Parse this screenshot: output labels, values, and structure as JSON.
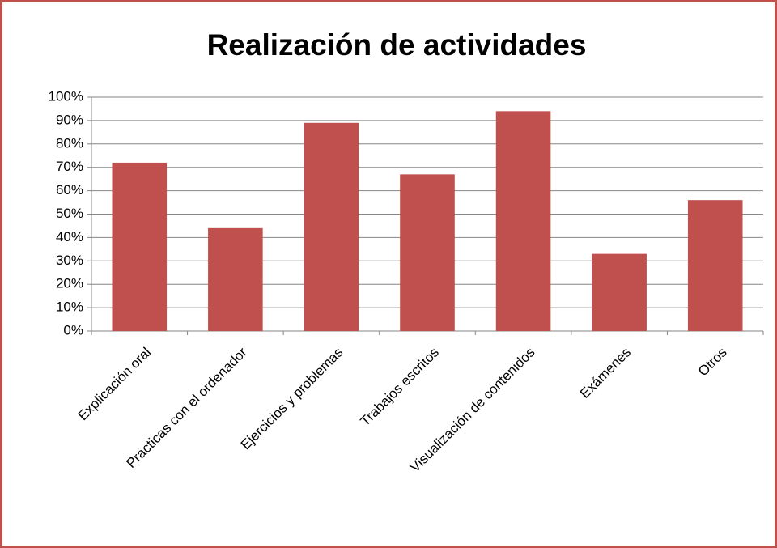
{
  "chart_data": {
    "type": "bar",
    "title": "Realización de actividades",
    "categories": [
      "Explicación oral",
      "Prácticas con el ordenador",
      "Ejercicios y problemas",
      "Trabajos escritos",
      "Visualización de contenidos",
      "Exámenes",
      "Otros"
    ],
    "values": [
      72,
      44,
      89,
      67,
      94,
      33,
      56
    ],
    "color": "#c0504d",
    "ylim": [
      0,
      100
    ],
    "yticks": [
      {
        "value": 0,
        "label": "0%"
      },
      {
        "value": 10,
        "label": "10%"
      },
      {
        "value": 20,
        "label": "20%"
      },
      {
        "value": 30,
        "label": "30%"
      },
      {
        "value": 40,
        "label": "40%"
      },
      {
        "value": 50,
        "label": "50%"
      },
      {
        "value": 60,
        "label": "60%"
      },
      {
        "value": 70,
        "label": "70%"
      },
      {
        "value": 80,
        "label": "80%"
      },
      {
        "value": 90,
        "label": "90%"
      },
      {
        "value": 100,
        "label": "100%"
      }
    ],
    "grid": true
  }
}
